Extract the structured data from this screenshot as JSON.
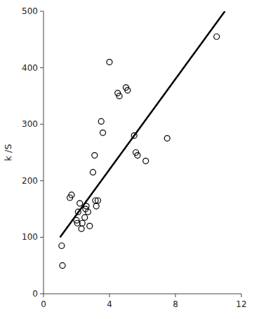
{
  "chart_data": {
    "type": "scatter",
    "ylabel": "k /S",
    "series": [
      {
        "type": "scatter",
        "color": "#000000",
        "marker": "open-circle",
        "x": [
          1.1,
          1.15,
          1.6,
          1.7,
          2.0,
          2.05,
          2.1,
          2.2,
          2.3,
          2.35,
          2.5,
          2.55,
          2.6,
          2.7,
          2.8,
          3.0,
          3.1,
          3.15,
          3.2,
          3.3,
          3.5,
          3.6,
          4.0,
          4.5,
          4.6,
          5.0,
          5.1,
          5.5,
          5.6,
          5.7,
          6.2,
          7.5,
          10.5
        ],
        "values": [
          85,
          50,
          170,
          175,
          130,
          125,
          145,
          160,
          115,
          125,
          135,
          150,
          155,
          145,
          120,
          215,
          245,
          165,
          155,
          165,
          305,
          285,
          410,
          355,
          350,
          365,
          360,
          280,
          250,
          245,
          235,
          275,
          455
        ]
      },
      {
        "type": "line",
        "color": "#000000",
        "line_style": "solid",
        "x": [
          1.0,
          11.0
        ],
        "values": [
          100,
          500
        ]
      }
    ],
    "xlim": [
      0,
      12
    ],
    "ylim": [
      0,
      500
    ],
    "xticks": [
      0,
      4,
      8,
      12
    ],
    "yticks": [
      0,
      100,
      200,
      300,
      400,
      500
    ]
  }
}
